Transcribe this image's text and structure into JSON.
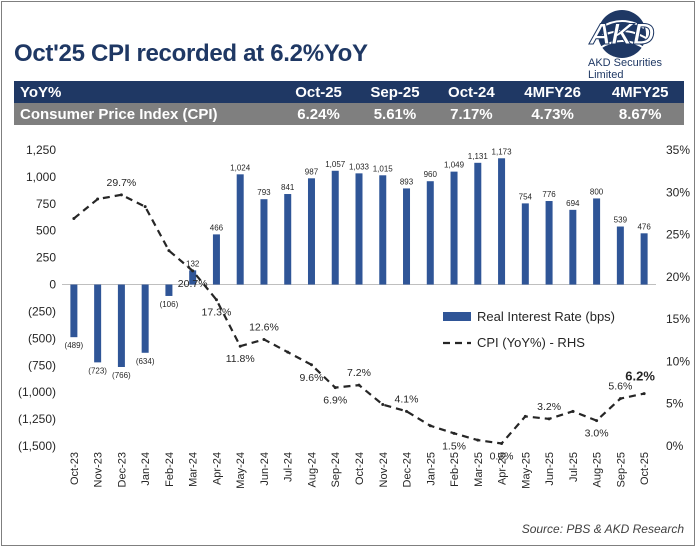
{
  "header": {
    "title": "Oct'25 CPI recorded at 6.2%YoY",
    "brand": "AKD Securities Limited",
    "logo_glyph": "AKD"
  },
  "table": {
    "headers": [
      "YoY%",
      "Oct-25",
      "Sep-25",
      "Oct-24",
      "4MFY26",
      "4MFY25"
    ],
    "row_label": "Consumer Price Index (CPI)",
    "row_values": [
      "6.24%",
      "5.61%",
      "7.17%",
      "4.73%",
      "8.67%"
    ]
  },
  "footer": {
    "source": "Source: PBS & AKD Research"
  },
  "colors": {
    "navy": "#1f3864",
    "bar": "#2f5597",
    "grey_row": "#7f7f7f",
    "line": "#262626"
  },
  "chart_data": {
    "type": "bar+line",
    "categories": [
      "Oct-23",
      "Nov-23",
      "Dec-23",
      "Jan-24",
      "Feb-24",
      "Mar-24",
      "Apr-24",
      "May-24",
      "Jun-24",
      "Jul-24",
      "Aug-24",
      "Sep-24",
      "Oct-24",
      "Nov-24",
      "Dec-24",
      "Jan-25",
      "Feb-25",
      "Mar-25",
      "Apr-25",
      "May-25",
      "Jun-25",
      "Jul-25",
      "Aug-25",
      "Sep-25",
      "Oct-25"
    ],
    "series": [
      {
        "name": "Real Interest Rate (bps)",
        "type": "bar",
        "axis": "left",
        "values": [
          -489,
          -723,
          -766,
          -634,
          -106,
          132,
          466,
          1024,
          793,
          841,
          987,
          1057,
          1033,
          1015,
          893,
          960,
          1049,
          1131,
          1173,
          754,
          776,
          694,
          800,
          539,
          476
        ],
        "labels": [
          "(489)",
          "(723)",
          "(766)",
          "(634)",
          "(106)",
          "132",
          "466",
          "1,024",
          "793",
          "841",
          "987",
          "1,057",
          "1,033",
          "1,015",
          "893",
          "960",
          "1,049",
          "1,131",
          "1,173",
          "754",
          "776",
          "694",
          "800",
          "539",
          "476"
        ]
      },
      {
        "name": "CPI (YoY%) - RHS",
        "type": "line",
        "axis": "right",
        "values": [
          26.9,
          29.2,
          29.7,
          28.3,
          23.1,
          20.7,
          17.3,
          11.8,
          12.6,
          11.1,
          9.6,
          6.9,
          7.2,
          4.9,
          4.1,
          2.4,
          1.5,
          0.7,
          0.3,
          3.5,
          3.2,
          4.1,
          3.0,
          5.6,
          6.2
        ],
        "labels": [
          "",
          "",
          "29.7%",
          "",
          "",
          "20.7%",
          "17.3%",
          "11.8%",
          "12.6%",
          "",
          "9.6%",
          "6.9%",
          "7.2%",
          "",
          "4.1%",
          "",
          "1.5%",
          "",
          "0.3%",
          "",
          "3.2%",
          "",
          "3.0%",
          "5.6%",
          "6.2%"
        ]
      }
    ],
    "y_left": {
      "ylim": [
        -1500,
        1250
      ],
      "ticks": [
        1250,
        1000,
        750,
        500,
        250,
        0,
        -250,
        -500,
        -750,
        -1000,
        -1250,
        -1500
      ],
      "tick_labels": [
        "1,250",
        "1,000",
        "750",
        "500",
        "250",
        "0",
        "(250)",
        "(500)",
        "(750)",
        "(1,000)",
        "(1,250)",
        "(1,500)"
      ]
    },
    "y_right": {
      "ylim": [
        0,
        35
      ],
      "ticks": [
        35,
        30,
        25,
        20,
        15,
        10,
        5,
        0
      ],
      "tick_labels": [
        "35%",
        "30%",
        "25%",
        "20%",
        "15%",
        "10%",
        "5%",
        "0%"
      ]
    },
    "legend": "center-right",
    "grid": false
  }
}
